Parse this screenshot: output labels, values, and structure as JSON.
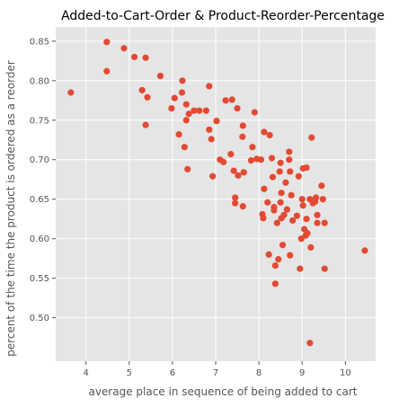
{
  "chart_data": {
    "type": "scatter",
    "title": "Added-to-Cart-Order & Product-Reorder-Percentage",
    "xlabel": "average place in sequence of being added to cart",
    "ylabel": "percent of the time the product is ordered as a reorder",
    "xlim": [
      3.3,
      10.7
    ],
    "ylim": [
      0.445,
      0.868
    ],
    "xticks": [
      4,
      5,
      6,
      7,
      8,
      9,
      10
    ],
    "yticks": [
      0.5,
      0.55,
      0.6,
      0.65,
      0.7,
      0.75,
      0.8,
      0.85
    ],
    "grid": true,
    "legend": "none",
    "colors": {
      "marker": "#E24A33",
      "panel": "#E5E5E5",
      "grid": "#FFFFFF"
    },
    "points": [
      [
        3.65,
        0.785
      ],
      [
        4.48,
        0.849
      ],
      [
        4.48,
        0.812
      ],
      [
        4.88,
        0.841
      ],
      [
        5.12,
        0.83
      ],
      [
        5.38,
        0.829
      ],
      [
        5.3,
        0.788
      ],
      [
        5.42,
        0.779
      ],
      [
        5.38,
        0.744
      ],
      [
        5.72,
        0.806
      ],
      [
        5.98,
        0.765
      ],
      [
        6.05,
        0.778
      ],
      [
        6.15,
        0.732
      ],
      [
        6.22,
        0.785
      ],
      [
        6.23,
        0.8
      ],
      [
        6.28,
        0.716
      ],
      [
        6.32,
        0.75
      ],
      [
        6.32,
        0.77
      ],
      [
        6.38,
        0.758
      ],
      [
        6.35,
        0.688
      ],
      [
        6.5,
        0.762
      ],
      [
        6.62,
        0.762
      ],
      [
        6.78,
        0.762
      ],
      [
        6.85,
        0.793
      ],
      [
        6.85,
        0.738
      ],
      [
        6.9,
        0.726
      ],
      [
        6.93,
        0.679
      ],
      [
        7.02,
        0.749
      ],
      [
        7.1,
        0.7
      ],
      [
        7.18,
        0.697
      ],
      [
        7.23,
        0.775
      ],
      [
        7.35,
        0.707
      ],
      [
        7.38,
        0.776
      ],
      [
        7.42,
        0.686
      ],
      [
        7.45,
        0.645
      ],
      [
        7.45,
        0.652
      ],
      [
        7.5,
        0.765
      ],
      [
        7.52,
        0.68
      ],
      [
        7.63,
        0.743
      ],
      [
        7.62,
        0.729
      ],
      [
        7.65,
        0.684
      ],
      [
        7.63,
        0.641
      ],
      [
        7.82,
        0.699
      ],
      [
        7.85,
        0.716
      ],
      [
        7.9,
        0.76
      ],
      [
        7.95,
        0.701
      ],
      [
        8.05,
        0.7
      ],
      [
        8.12,
        0.735
      ],
      [
        8.12,
        0.663
      ],
      [
        8.08,
        0.631
      ],
      [
        8.1,
        0.626
      ],
      [
        8.2,
        0.646
      ],
      [
        8.23,
        0.58
      ],
      [
        8.25,
        0.731
      ],
      [
        8.3,
        0.702
      ],
      [
        8.32,
        0.678
      ],
      [
        8.35,
        0.64
      ],
      [
        8.35,
        0.636
      ],
      [
        8.38,
        0.566
      ],
      [
        8.38,
        0.543
      ],
      [
        8.42,
        0.62
      ],
      [
        8.45,
        0.574
      ],
      [
        8.48,
        0.685
      ],
      [
        8.5,
        0.696
      ],
      [
        8.52,
        0.658
      ],
      [
        8.5,
        0.646
      ],
      [
        8.52,
        0.626
      ],
      [
        8.55,
        0.592
      ],
      [
        8.58,
        0.63
      ],
      [
        8.62,
        0.671
      ],
      [
        8.65,
        0.637
      ],
      [
        8.7,
        0.71
      ],
      [
        8.7,
        0.7
      ],
      [
        8.72,
        0.685
      ],
      [
        8.75,
        0.655
      ],
      [
        8.72,
        0.579
      ],
      [
        8.78,
        0.623
      ],
      [
        8.88,
        0.629
      ],
      [
        8.92,
        0.679
      ],
      [
        8.95,
        0.562
      ],
      [
        8.98,
        0.6
      ],
      [
        9.02,
        0.689
      ],
      [
        9.0,
        0.65
      ],
      [
        9.02,
        0.642
      ],
      [
        9.05,
        0.612
      ],
      [
        9.08,
        0.604
      ],
      [
        9.1,
        0.69
      ],
      [
        9.1,
        0.625
      ],
      [
        9.12,
        0.607
      ],
      [
        9.18,
        0.65
      ],
      [
        9.2,
        0.589
      ],
      [
        9.22,
        0.728
      ],
      [
        9.25,
        0.645
      ],
      [
        9.3,
        0.647
      ],
      [
        9.32,
        0.652
      ],
      [
        9.35,
        0.62
      ],
      [
        9.35,
        0.63
      ],
      [
        9.45,
        0.667
      ],
      [
        9.48,
        0.65
      ],
      [
        9.52,
        0.562
      ],
      [
        9.52,
        0.62
      ],
      [
        9.18,
        0.468
      ],
      [
        10.45,
        0.585
      ]
    ]
  }
}
